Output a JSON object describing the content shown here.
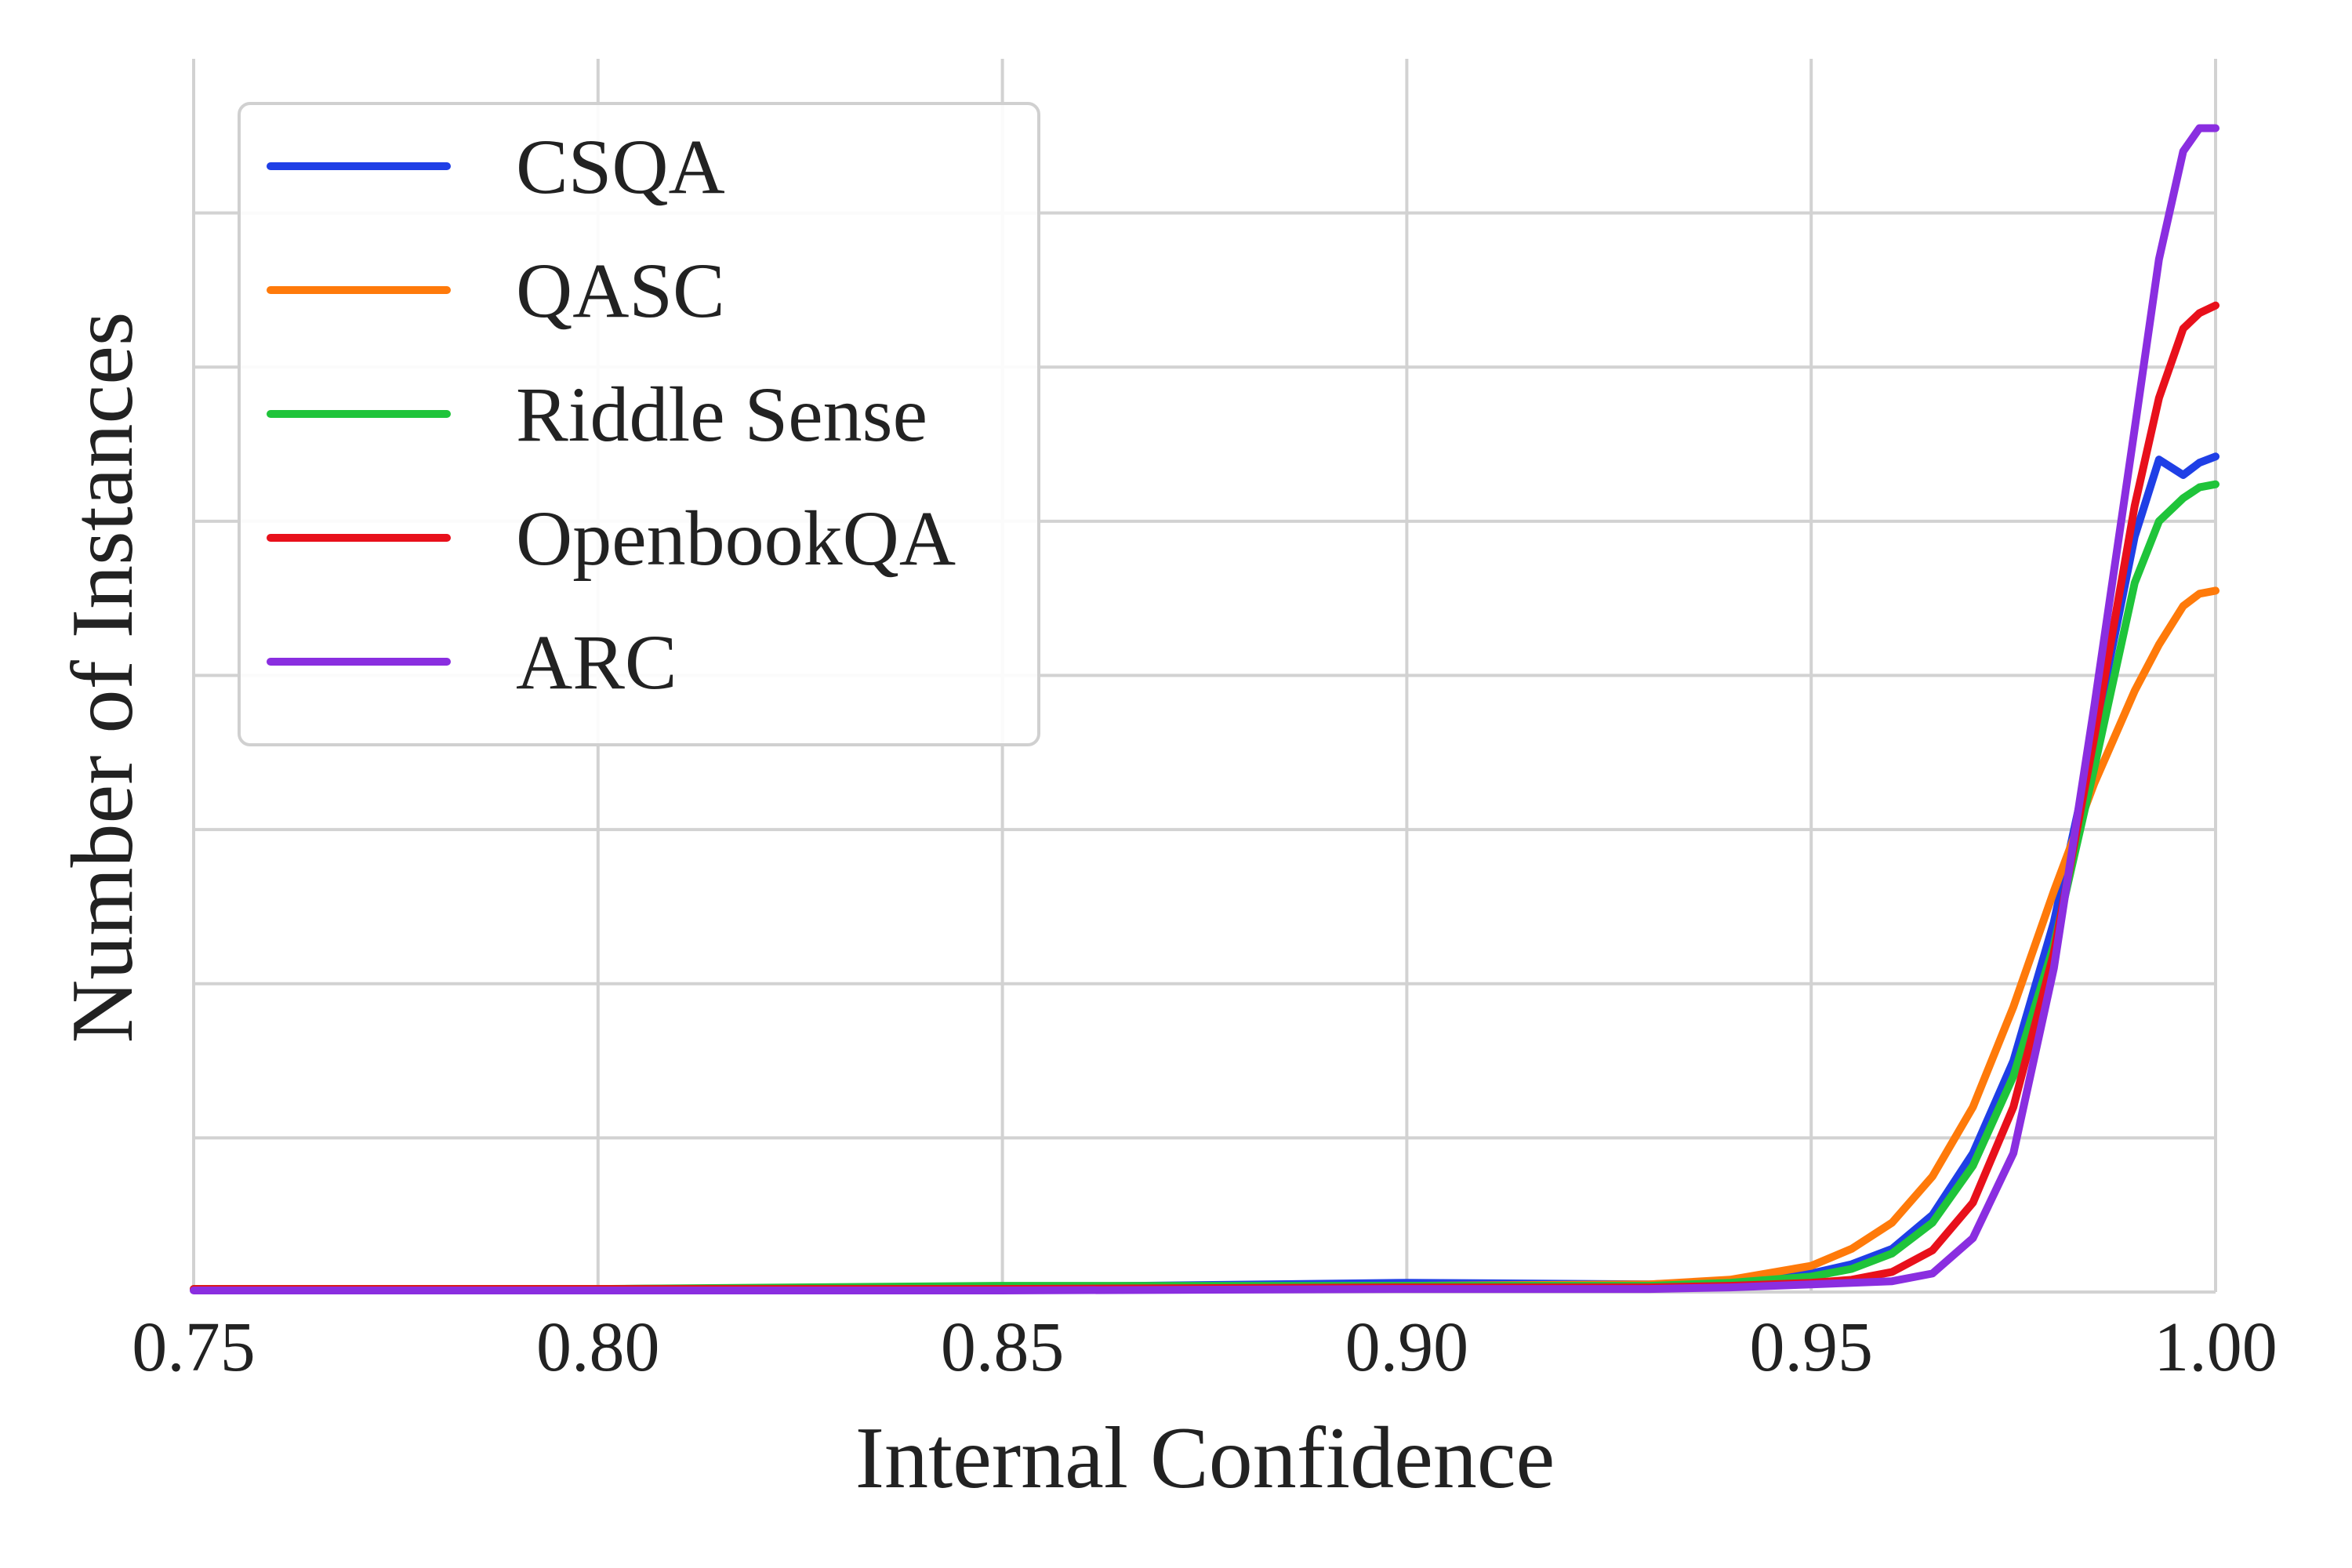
{
  "chart_data": {
    "type": "line",
    "title": "",
    "xlabel": "Internal Confidence",
    "ylabel": "Number of Instances",
    "xlim": [
      0.75,
      1.0
    ],
    "ylim": [
      0,
      8
    ],
    "xticks": [
      0.75,
      0.8,
      0.85,
      0.9,
      0.95,
      1.0
    ],
    "xtick_labels": [
      "0.75",
      "0.80",
      "0.85",
      "0.90",
      "0.95",
      "1.00"
    ],
    "yticks": [
      0,
      1,
      2,
      3,
      4,
      5,
      6,
      7,
      8
    ],
    "ytick_labels": [],
    "grid": true,
    "legend_position": "top-left",
    "x": [
      0.75,
      0.8,
      0.85,
      0.9,
      0.93,
      0.94,
      0.95,
      0.955,
      0.96,
      0.965,
      0.97,
      0.975,
      0.98,
      0.985,
      0.99,
      0.993,
      0.996,
      0.998,
      1.0
    ],
    "series": [
      {
        "name": "CSQA",
        "color": "#1f3fe6",
        "values": [
          0.02,
          0.02,
          0.03,
          0.06,
          0.05,
          0.07,
          0.12,
          0.18,
          0.28,
          0.5,
          0.9,
          1.5,
          2.4,
          3.6,
          4.9,
          5.4,
          5.3,
          5.38,
          5.42
        ]
      },
      {
        "name": "QASC",
        "color": "#ff7a0a",
        "values": [
          0.02,
          0.02,
          0.03,
          0.04,
          0.05,
          0.08,
          0.17,
          0.28,
          0.45,
          0.75,
          1.2,
          1.85,
          2.6,
          3.3,
          3.9,
          4.2,
          4.45,
          4.53,
          4.55
        ]
      },
      {
        "name": "Riddle Sense",
        "color": "#1fc43a",
        "values": [
          0.02,
          0.02,
          0.04,
          0.04,
          0.04,
          0.06,
          0.1,
          0.15,
          0.25,
          0.45,
          0.82,
          1.4,
          2.25,
          3.4,
          4.6,
          5.0,
          5.15,
          5.22,
          5.24
        ]
      },
      {
        "name": "OpenbookQA",
        "color": "#e8101b",
        "values": [
          0.02,
          0.02,
          0.02,
          0.03,
          0.03,
          0.04,
          0.06,
          0.08,
          0.13,
          0.27,
          0.58,
          1.2,
          2.2,
          3.6,
          5.1,
          5.8,
          6.25,
          6.35,
          6.4
        ]
      },
      {
        "name": "ARC",
        "color": "#8a2ee0",
        "values": [
          0.01,
          0.01,
          0.01,
          0.02,
          0.02,
          0.03,
          0.05,
          0.06,
          0.07,
          0.12,
          0.35,
          0.9,
          2.1,
          3.8,
          5.6,
          6.7,
          7.4,
          7.55,
          7.55
        ]
      }
    ]
  }
}
